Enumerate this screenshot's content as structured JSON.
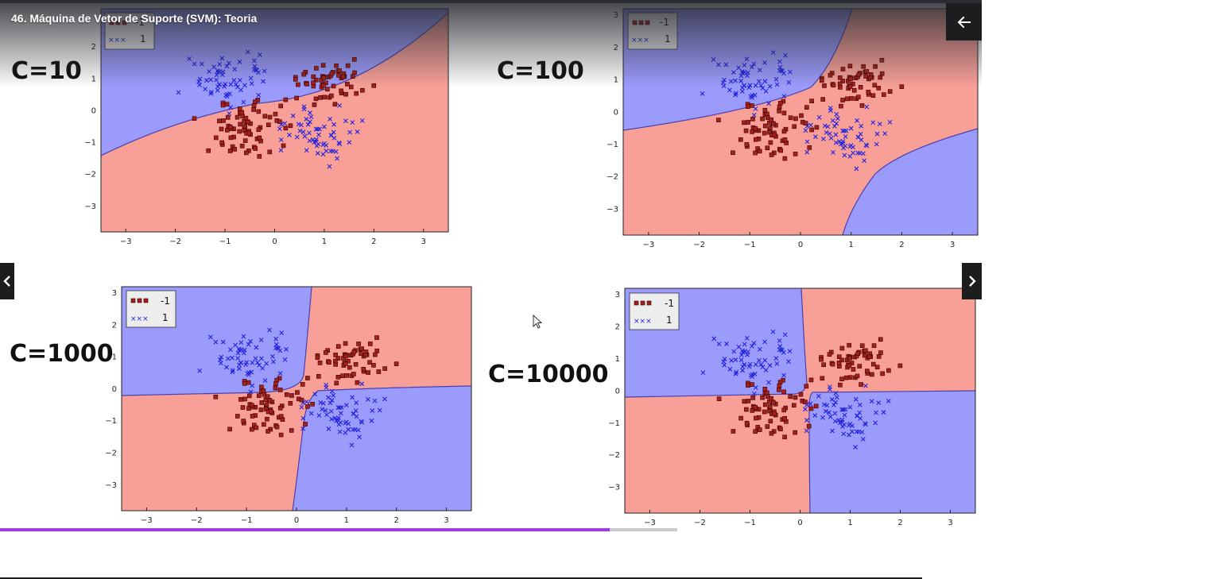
{
  "header": {
    "title": "46. Máquina de Vetor de Suporte (SVM): Teoria"
  },
  "icons": {
    "back": "arrow-left-icon",
    "prev": "chevron-left-icon",
    "next": "chevron-right-icon",
    "cursor": "mouse-pointer-icon"
  },
  "progress": {
    "fraction": 0.9
  },
  "colors": {
    "accent": "#a435f0",
    "class_neg": "#f8a098",
    "class_pos": "#9b9bfc",
    "marker_neg": "#a3201c",
    "marker_pos": "#2222dd"
  },
  "legend": {
    "neg_label": "-1",
    "pos_label": "1"
  },
  "chart_data": [
    {
      "type": "scatter",
      "label": "C=10",
      "xticks": [
        "−3",
        "−2",
        "−1",
        "0",
        "1",
        "2",
        "3"
      ],
      "yticks": [
        "2",
        "1",
        "0",
        "−1",
        "−2",
        "−3"
      ],
      "xlim": [
        -3.5,
        3.5
      ],
      "ylim": [
        -3.8,
        3.2
      ],
      "series": [
        {
          "name": "-1"
        },
        {
          "name": "1"
        }
      ]
    },
    {
      "type": "scatter",
      "label": "C=100",
      "xticks": [
        "−3",
        "−2",
        "−1",
        "0",
        "1",
        "2",
        "3"
      ],
      "yticks": [
        "3",
        "2",
        "1",
        "0",
        "−1",
        "−2",
        "−3"
      ],
      "xlim": [
        -3.5,
        3.5
      ],
      "ylim": [
        -3.8,
        3.2
      ],
      "series": [
        {
          "name": "-1"
        },
        {
          "name": "1"
        }
      ]
    },
    {
      "type": "scatter",
      "label": "C=1000",
      "xticks": [
        "−3",
        "−2",
        "−1",
        "0",
        "1",
        "2",
        "3"
      ],
      "yticks": [
        "3",
        "2",
        "1",
        "0",
        "−1",
        "−2",
        "−3"
      ],
      "xlim": [
        -3.5,
        3.5
      ],
      "ylim": [
        -3.8,
        3.2
      ],
      "series": [
        {
          "name": "-1"
        },
        {
          "name": "1"
        }
      ]
    },
    {
      "type": "scatter",
      "label": "C=10000",
      "xticks": [
        "−3",
        "−2",
        "−1",
        "0",
        "1",
        "2",
        "3"
      ],
      "yticks": [
        "3",
        "2",
        "1",
        "0",
        "−1",
        "−2",
        "−3"
      ],
      "xlim": [
        -3.5,
        3.5
      ],
      "ylim": [
        -3.8,
        3.2
      ],
      "series": [
        {
          "name": "-1"
        },
        {
          "name": "1"
        }
      ]
    }
  ]
}
